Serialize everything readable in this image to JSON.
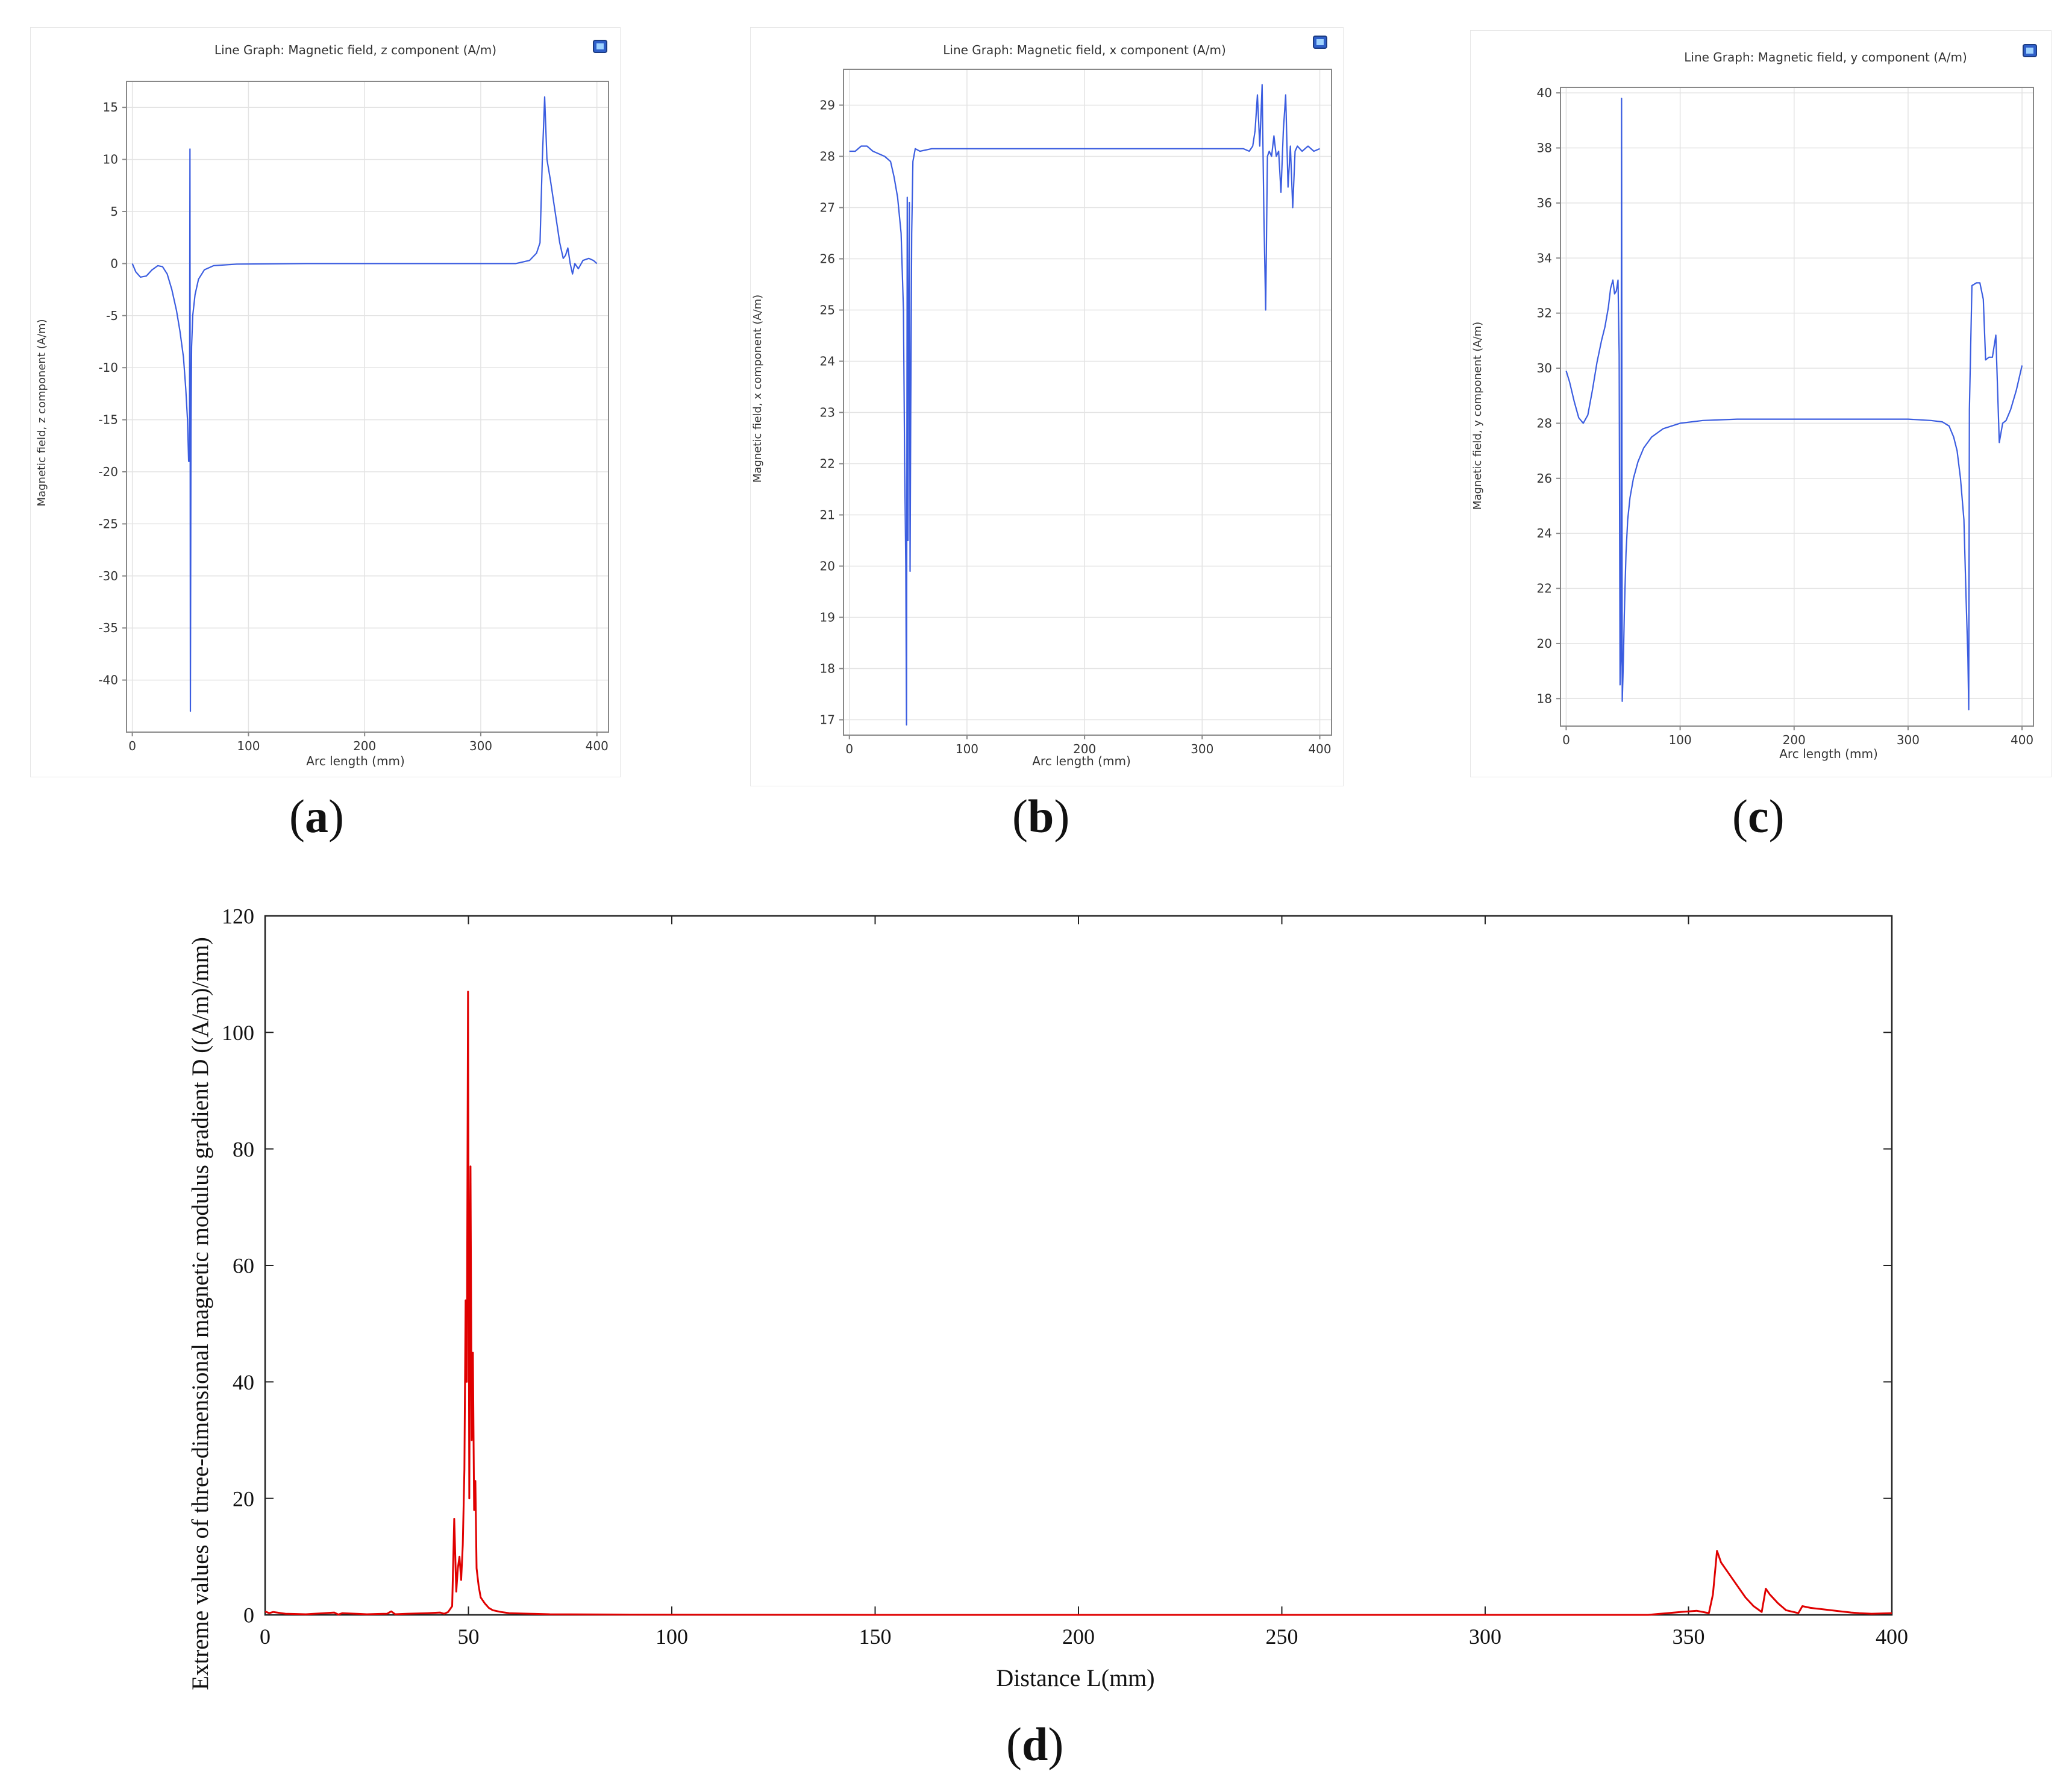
{
  "panels": [
    {
      "id": "a",
      "label": "a"
    },
    {
      "id": "b",
      "label": "b"
    },
    {
      "id": "c",
      "label": "c"
    },
    {
      "id": "d",
      "label": "d"
    }
  ],
  "chart_data": [
    {
      "id": "a",
      "type": "line",
      "title": "Line Graph: Magnetic field, z component (A/m)",
      "xlabel": "Arc length (mm)",
      "ylabel": "Magnetic field, z component (A/m)",
      "xlim": [
        -5,
        410
      ],
      "ylim": [
        -45,
        17.5
      ],
      "xticks": [
        0,
        100,
        200,
        300,
        400
      ],
      "yticks": [
        15,
        10,
        5,
        0,
        -5,
        -10,
        -15,
        -20,
        -25,
        -30,
        -35,
        -40
      ],
      "grid": true,
      "color": "#3b5de0",
      "series": [
        {
          "x": [
            0,
            3,
            7,
            12,
            17,
            22,
            26,
            30,
            34,
            38,
            41,
            44,
            46,
            47.5,
            48.5,
            49.2,
            49.6,
            50,
            50.5,
            51,
            52,
            54,
            57,
            62,
            70,
            90,
            150,
            250,
            330,
            342,
            348,
            351,
            353,
            355,
            357,
            360,
            364,
            368,
            371,
            373,
            375,
            377,
            379,
            381,
            384,
            388,
            393,
            397,
            400
          ],
          "y": [
            0,
            -0.8,
            -1.3,
            -1.2,
            -0.6,
            -0.2,
            -0.3,
            -1,
            -2.5,
            -4.5,
            -6.5,
            -9,
            -12,
            -15,
            -19,
            -19,
            11,
            -43,
            -16,
            -8,
            -5,
            -3,
            -1.5,
            -0.6,
            -0.2,
            -0.05,
            0,
            0,
            0,
            0.3,
            1,
            2,
            10,
            16,
            10,
            8,
            5,
            2,
            0.5,
            0.8,
            1.5,
            0,
            -1,
            0,
            -0.5,
            0.3,
            0.5,
            0.3,
            0
          ]
        }
      ]
    },
    {
      "id": "b",
      "type": "line",
      "title": "Line Graph: Magnetic field, x component (A/m)",
      "xlabel": "Arc length (mm)",
      "ylabel": "Magnetic field, x component (A/m)",
      "xlim": [
        -5,
        410
      ],
      "ylim": [
        16.7,
        29.7
      ],
      "xticks": [
        0,
        100,
        200,
        300,
        400
      ],
      "yticks": [
        29,
        28,
        27,
        26,
        25,
        24,
        23,
        22,
        21,
        20,
        19,
        18,
        17
      ],
      "grid": true,
      "color": "#3b5de0",
      "series": [
        {
          "x": [
            0,
            5,
            10,
            15,
            20,
            25,
            30,
            35,
            38,
            41,
            44,
            46,
            47,
            48,
            48.6,
            49.2,
            49.8,
            50.4,
            51,
            51.6,
            52.2,
            53,
            54,
            56,
            60,
            70,
            100,
            200,
            300,
            335,
            340,
            343,
            345,
            347,
            349,
            351,
            352.5,
            354,
            355.5,
            357,
            359,
            361,
            363,
            365,
            367,
            369,
            371,
            373,
            375,
            377,
            379,
            381,
            385,
            390,
            395,
            400
          ],
          "y": [
            28.1,
            28.1,
            28.2,
            28.2,
            28.1,
            28.05,
            28,
            27.9,
            27.6,
            27.2,
            26.5,
            25,
            22,
            20,
            16.9,
            27.2,
            20.5,
            25,
            27.1,
            19.9,
            23,
            26.5,
            27.9,
            28.15,
            28.1,
            28.15,
            28.15,
            28.15,
            28.15,
            28.15,
            28.1,
            28.2,
            28.5,
            29.2,
            28.2,
            29.4,
            26.8,
            25,
            28,
            28.1,
            28,
            28.4,
            28,
            28.1,
            27.3,
            28.5,
            29.2,
            27.4,
            28.2,
            27,
            28.1,
            28.2,
            28.1,
            28.2,
            28.1,
            28.15
          ]
        }
      ]
    },
    {
      "id": "c",
      "type": "line",
      "title": "Line Graph: Magnetic field, y component (A/m)",
      "xlabel": "Arc length (mm)",
      "ylabel": "Magnetic field, y component (A/m)",
      "xlim": [
        -5,
        410
      ],
      "ylim": [
        17,
        40.2
      ],
      "xticks": [
        0,
        100,
        200,
        300,
        400
      ],
      "yticks": [
        40,
        38,
        36,
        34,
        32,
        30,
        28,
        26,
        24,
        22,
        20,
        18
      ],
      "grid": true,
      "color": "#3b5de0",
      "series": [
        {
          "x": [
            0,
            3,
            7,
            11,
            15,
            19,
            23,
            27,
            31,
            34,
            37,
            39,
            41,
            42.5,
            44,
            45.5,
            46.5,
            47.3,
            48,
            48.6,
            49.2,
            49.8,
            50.4,
            51,
            51.6,
            52.5,
            54,
            56,
            59,
            63,
            68,
            75,
            85,
            100,
            120,
            150,
            200,
            250,
            300,
            320,
            330,
            336,
            340,
            343,
            346,
            349,
            351,
            352.5,
            353.2,
            353.8,
            356,
            360,
            363,
            366,
            368,
            371,
            374,
            377,
            380,
            383,
            386,
            390,
            395,
            400
          ],
          "y": [
            29.9,
            29.5,
            28.8,
            28.2,
            28,
            28.3,
            29.2,
            30.2,
            31,
            31.5,
            32.2,
            32.9,
            33.2,
            32.7,
            32.8,
            33.2,
            30.5,
            18.5,
            19.4,
            39.8,
            17.9,
            18.8,
            19.8,
            21,
            22,
            23.3,
            24.5,
            25.3,
            26,
            26.6,
            27.1,
            27.5,
            27.8,
            28,
            28.1,
            28.15,
            28.15,
            28.15,
            28.15,
            28.1,
            28.05,
            27.9,
            27.5,
            27,
            26,
            24.5,
            21.5,
            19.5,
            17.6,
            28.5,
            33,
            33.1,
            33.1,
            32.5,
            30.3,
            30.4,
            30.4,
            31.2,
            27.3,
            28,
            28.1,
            28.5,
            29.2,
            30.1
          ]
        }
      ]
    },
    {
      "id": "d",
      "type": "line",
      "title": "",
      "xlabel": "Distance L(mm)",
      "ylabel": "Extreme values of three-dimensional magnetic modulus gradient D ((A/m)/mm)",
      "xlim": [
        0,
        400
      ],
      "ylim": [
        0,
        120
      ],
      "xticks": [
        0,
        50,
        100,
        150,
        200,
        250,
        300,
        350,
        400
      ],
      "yticks": [
        0,
        20,
        40,
        60,
        80,
        100,
        120
      ],
      "grid": false,
      "color": "#e00000",
      "series": [
        {
          "x": [
            0,
            1,
            2,
            5,
            10,
            17,
            18,
            19,
            25,
            30,
            31,
            32,
            35,
            40,
            43,
            44,
            45,
            46,
            46.5,
            47,
            47.4,
            47.8,
            48.2,
            48.6,
            49,
            49.3,
            49.6,
            49.9,
            50.2,
            50.5,
            50.8,
            51.1,
            51.4,
            51.7,
            52,
            52.5,
            53,
            54,
            55,
            56,
            58,
            60,
            65,
            70,
            90,
            150,
            250,
            340,
            348,
            352,
            355,
            356,
            357,
            358,
            360,
            362,
            364,
            366,
            368,
            369,
            370,
            372,
            374,
            377,
            378,
            380,
            385,
            390,
            392,
            395,
            400
          ],
          "y": [
            0.6,
            0.3,
            0.5,
            0.2,
            0.1,
            0.4,
            0.05,
            0.3,
            0.1,
            0.2,
            0.6,
            0.1,
            0.2,
            0.3,
            0.4,
            0.2,
            0.5,
            1.5,
            16.5,
            4,
            8,
            10,
            6,
            12,
            25,
            54,
            40,
            107,
            20,
            77,
            30,
            45,
            18,
            23,
            8,
            5,
            3,
            2,
            1.2,
            0.8,
            0.5,
            0.3,
            0.2,
            0.1,
            0.05,
            0,
            0,
            0,
            0.5,
            0.7,
            0.3,
            3.5,
            11,
            9,
            7,
            5,
            3,
            1.5,
            0.5,
            4.5,
            3.5,
            2,
            0.8,
            0.3,
            1.5,
            1.2,
            0.8,
            0.4,
            0.3,
            0.2,
            0.3
          ]
        }
      ]
    }
  ]
}
